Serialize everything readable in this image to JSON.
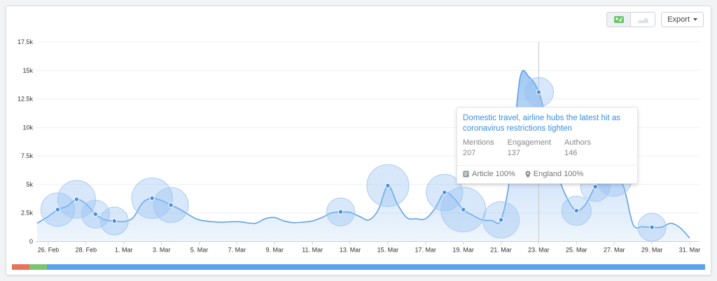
{
  "toolbar": {
    "export_label": "Export",
    "toggles": [
      {
        "icon": "bubble-chart-icon",
        "active": true
      },
      {
        "icon": "area-chart-icon",
        "active": false
      }
    ]
  },
  "chart_data": {
    "type": "area",
    "title": "",
    "xlabel": "",
    "ylabel": "",
    "ylim": [
      0,
      17500
    ],
    "y_ticks": [
      "0",
      "2.5k",
      "5k",
      "7.5k",
      "10k",
      "12.5k",
      "15k",
      "17.5k"
    ],
    "y_tick_values": [
      0,
      2500,
      5000,
      7500,
      10000,
      12500,
      15000,
      17500
    ],
    "x_tick_labels": [
      "26. Feb",
      "28. Feb",
      "1. Mar",
      "3. Mar",
      "5. Mar",
      "7. Mar",
      "9. Mar",
      "11. Mar",
      "13. Mar",
      "15. Mar",
      "17. Mar",
      "19. Mar",
      "21. Mar",
      "23. Mar",
      "25. Mar",
      "27. Mar",
      "29. Mar",
      "31. Mar"
    ],
    "x_tick_days": [
      0,
      2,
      4,
      6,
      8,
      10,
      12,
      14,
      16,
      18,
      20,
      22,
      24,
      26,
      28,
      30,
      32,
      34
    ],
    "grid": true,
    "line_color": "#5a9ee8",
    "series": [
      {
        "points": [
          {
            "date": "25. Feb",
            "day": -0.6,
            "value": 1600
          },
          {
            "date": "26. Feb",
            "day": 0,
            "value": 2200
          },
          {
            "date": "26. Feb",
            "day": 0.5,
            "value": 2800
          },
          {
            "date": "27. Feb",
            "day": 1,
            "value": 3100
          },
          {
            "date": "27. Feb",
            "day": 1.5,
            "value": 3700
          },
          {
            "date": "28. Feb",
            "day": 2,
            "value": 3300
          },
          {
            "date": "28. Feb",
            "day": 2.5,
            "value": 2400
          },
          {
            "date": "29. Feb",
            "day": 3,
            "value": 1900
          },
          {
            "date": "1. Mar",
            "day": 3.5,
            "value": 1800
          },
          {
            "date": "1. Mar",
            "day": 4,
            "value": 1750
          },
          {
            "date": "2. Mar",
            "day": 4.5,
            "value": 2100
          },
          {
            "date": "2. Mar",
            "day": 5,
            "value": 3400
          },
          {
            "date": "3. Mar",
            "day": 5.5,
            "value": 3800
          },
          {
            "date": "3. Mar",
            "day": 6,
            "value": 3600
          },
          {
            "date": "4. Mar",
            "day": 6.5,
            "value": 3200
          },
          {
            "date": "4. Mar",
            "day": 7,
            "value": 2800
          },
          {
            "date": "5. Mar",
            "day": 7.5,
            "value": 2300
          },
          {
            "date": "5. Mar",
            "day": 8,
            "value": 1900
          },
          {
            "date": "6. Mar",
            "day": 9,
            "value": 1700
          },
          {
            "date": "7. Mar",
            "day": 10,
            "value": 1750
          },
          {
            "date": "7. Mar",
            "day": 10.5,
            "value": 1650
          },
          {
            "date": "8. Mar",
            "day": 11,
            "value": 1600
          },
          {
            "date": "8. Mar",
            "day": 11.5,
            "value": 2000
          },
          {
            "date": "9. Mar",
            "day": 12,
            "value": 2100
          },
          {
            "date": "9. Mar",
            "day": 12.5,
            "value": 1800
          },
          {
            "date": "10. Mar",
            "day": 13,
            "value": 1650
          },
          {
            "date": "10. Mar",
            "day": 13.5,
            "value": 1700
          },
          {
            "date": "11. Mar",
            "day": 14,
            "value": 1800
          },
          {
            "date": "11. Mar",
            "day": 14.5,
            "value": 2100
          },
          {
            "date": "12. Mar",
            "day": 15,
            "value": 2500
          },
          {
            "date": "12. Mar",
            "day": 15.5,
            "value": 2600
          },
          {
            "date": "13. Mar",
            "day": 16,
            "value": 2550
          },
          {
            "date": "13. Mar",
            "day": 16.5,
            "value": 2200
          },
          {
            "date": "14. Mar",
            "day": 17,
            "value": 1900
          },
          {
            "date": "14. Mar",
            "day": 17.5,
            "value": 2800
          },
          {
            "date": "15. Mar",
            "day": 18,
            "value": 4900
          },
          {
            "date": "15. Mar",
            "day": 18.5,
            "value": 3300
          },
          {
            "date": "16. Mar",
            "day": 19,
            "value": 2100
          },
          {
            "date": "16. Mar",
            "day": 19.5,
            "value": 2000
          },
          {
            "date": "17. Mar",
            "day": 20,
            "value": 2000
          },
          {
            "date": "17. Mar",
            "day": 20.5,
            "value": 2900
          },
          {
            "date": "18. Mar",
            "day": 21,
            "value": 4300
          },
          {
            "date": "18. Mar",
            "day": 21.5,
            "value": 3800
          },
          {
            "date": "19. Mar",
            "day": 22,
            "value": 2800
          },
          {
            "date": "19. Mar",
            "day": 22.5,
            "value": 2300
          },
          {
            "date": "20. Mar",
            "day": 23,
            "value": 1900
          },
          {
            "date": "20. Mar",
            "day": 23.5,
            "value": 1850
          },
          {
            "date": "21. Mar",
            "day": 24,
            "value": 1900
          },
          {
            "date": "21. Mar",
            "day": 24.5,
            "value": 6000
          },
          {
            "date": "22. Mar",
            "day": 25,
            "value": 14300
          },
          {
            "date": "22. Mar",
            "day": 25.5,
            "value": 14400
          },
          {
            "date": "23. Mar",
            "day": 26,
            "value": 13100
          },
          {
            "date": "23. Mar",
            "day": 26.5,
            "value": 10000
          },
          {
            "date": "24. Mar",
            "day": 27,
            "value": 6000
          },
          {
            "date": "24. Mar",
            "day": 27.5,
            "value": 3800
          },
          {
            "date": "25. Mar",
            "day": 28,
            "value": 2700
          },
          {
            "date": "25. Mar",
            "day": 28.5,
            "value": 3300
          },
          {
            "date": "26. Mar",
            "day": 29,
            "value": 4800
          },
          {
            "date": "26. Mar",
            "day": 29.5,
            "value": 5300
          },
          {
            "date": "27. Mar",
            "day": 30,
            "value": 5500
          },
          {
            "date": "27. Mar",
            "day": 30.5,
            "value": 4800
          },
          {
            "date": "28. Mar",
            "day": 31,
            "value": 1500
          },
          {
            "date": "28. Mar",
            "day": 31.5,
            "value": 1300
          },
          {
            "date": "29. Mar",
            "day": 32,
            "value": 1250
          },
          {
            "date": "29. Mar",
            "day": 32.5,
            "value": 1250
          },
          {
            "date": "30. Mar",
            "day": 33,
            "value": 1600
          },
          {
            "date": "30. Mar",
            "day": 33.5,
            "value": 1200
          },
          {
            "date": "31. Mar",
            "day": 34,
            "value": 300
          }
        ],
        "markers": [
          {
            "date": "26. Feb",
            "day": 0.5,
            "value": 2800
          },
          {
            "date": "27. Feb",
            "day": 1.5,
            "value": 3700
          },
          {
            "date": "28. Feb",
            "day": 2.5,
            "value": 2400
          },
          {
            "date": "1. Mar",
            "day": 3.5,
            "value": 1800
          },
          {
            "date": "3. Mar",
            "day": 5.5,
            "value": 3800
          },
          {
            "date": "4. Mar",
            "day": 6.5,
            "value": 3200
          },
          {
            "date": "12. Mar",
            "day": 15.5,
            "value": 2600
          },
          {
            "date": "15. Mar",
            "day": 18,
            "value": 4900
          },
          {
            "date": "18. Mar",
            "day": 21,
            "value": 4300
          },
          {
            "date": "19. Mar",
            "day": 22,
            "value": 2800
          },
          {
            "date": "21. Mar",
            "day": 24,
            "value": 1900
          },
          {
            "date": "23. Mar",
            "day": 26,
            "value": 13100
          },
          {
            "date": "25. Mar",
            "day": 28,
            "value": 2700
          },
          {
            "date": "26. Mar",
            "day": 29,
            "value": 4800
          },
          {
            "date": "27. Mar",
            "day": 30,
            "value": 5500
          },
          {
            "date": "29. Mar",
            "day": 32,
            "value": 1250
          }
        ]
      }
    ],
    "bubbles": [
      {
        "date": "26. Feb",
        "day": 0.5,
        "value": 2800,
        "weight": 0.6
      },
      {
        "date": "27. Feb",
        "day": 1.5,
        "value": 3700,
        "weight": 0.75
      },
      {
        "date": "28. Feb",
        "day": 2.5,
        "value": 2400,
        "weight": 0.4
      },
      {
        "date": "1. Mar",
        "day": 3.5,
        "value": 1800,
        "weight": 0.4
      },
      {
        "date": "3. Mar",
        "day": 5.5,
        "value": 3800,
        "weight": 0.85
      },
      {
        "date": "4. Mar",
        "day": 6.5,
        "value": 3200,
        "weight": 0.65
      },
      {
        "date": "12. Mar",
        "day": 15.5,
        "value": 2600,
        "weight": 0.4
      },
      {
        "date": "15. Mar",
        "day": 18,
        "value": 4900,
        "weight": 0.9
      },
      {
        "date": "18. Mar",
        "day": 21,
        "value": 4300,
        "weight": 0.7
      },
      {
        "date": "19. Mar",
        "day": 22,
        "value": 2800,
        "weight": 1.0
      },
      {
        "date": "21. Mar",
        "day": 24,
        "value": 1900,
        "weight": 0.7
      },
      {
        "date": "23. Mar",
        "day": 26,
        "value": 13100,
        "weight": 0.45
      },
      {
        "date": "25. Mar",
        "day": 28,
        "value": 2700,
        "weight": 0.45
      },
      {
        "date": "26. Mar",
        "day": 29,
        "value": 4800,
        "weight": 0.45
      },
      {
        "date": "27. Mar",
        "day": 30,
        "value": 5500,
        "weight": 0.65
      },
      {
        "date": "29. Mar",
        "day": 32,
        "value": 1250,
        "weight": 0.4
      }
    ],
    "crosshair_day": 26,
    "sentiment_bar": [
      {
        "value": 0.025,
        "color": "#e8725a"
      },
      {
        "value": 0.025,
        "color": "#7dc470"
      },
      {
        "value": 0.95,
        "color": "#5aa2ec"
      }
    ]
  },
  "tooltip": {
    "title": "Domestic travel, airline hubs the latest hit as coronavirus restrictions tighten",
    "stats": [
      {
        "label": "Mentions",
        "value": "207"
      },
      {
        "label": "Engagement",
        "value": "137"
      },
      {
        "label": "Authors",
        "value": "146"
      }
    ],
    "source_type": "Article 100%",
    "location": "England 100%"
  }
}
